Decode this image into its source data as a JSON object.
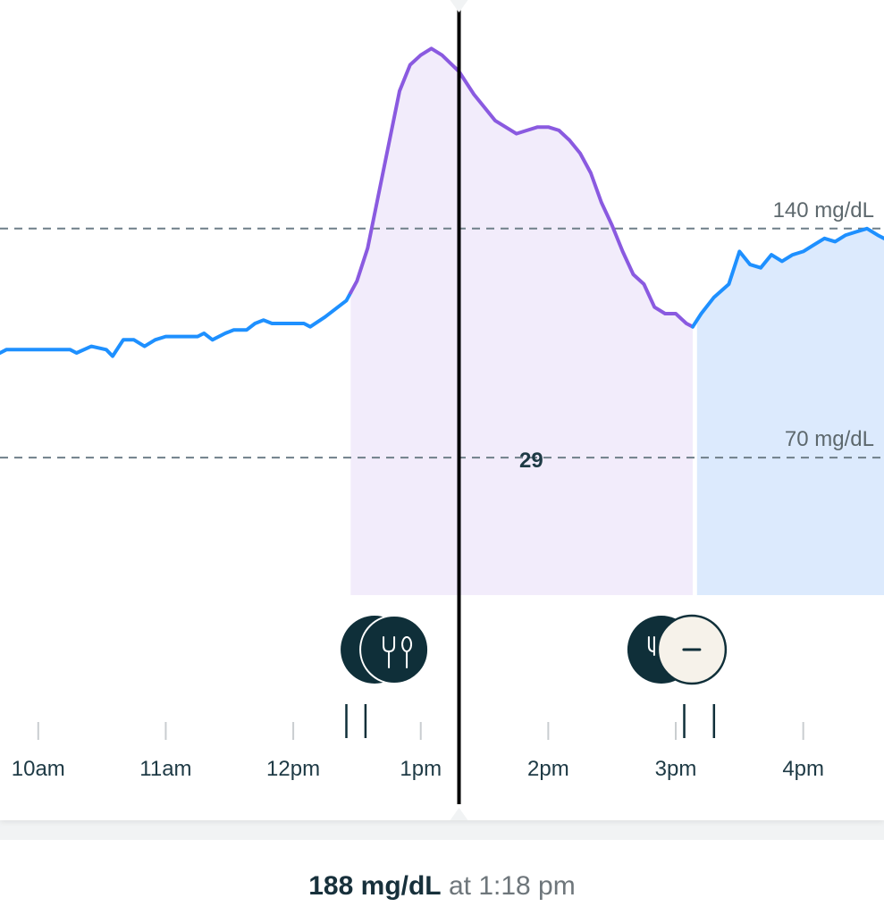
{
  "chart_data": {
    "type": "line",
    "x_unit": "time of day",
    "y_unit": "mg/dL",
    "xlim": [
      "9:42am",
      "4:38pm"
    ],
    "ylim": [
      28,
      197
    ],
    "x_ticks": [
      {
        "time": "10am",
        "label": "10am"
      },
      {
        "time": "11am",
        "label": "11am"
      },
      {
        "time": "12pm",
        "label": "12pm"
      },
      {
        "time": "1pm",
        "label": "1pm"
      },
      {
        "time": "2pm",
        "label": "2pm"
      },
      {
        "time": "3pm",
        "label": "3pm"
      },
      {
        "time": "4pm",
        "label": "4pm"
      }
    ],
    "reference_lines": [
      {
        "value": 140,
        "label": "140 mg/dL"
      },
      {
        "value": 70,
        "label": "70 mg/dL"
      }
    ],
    "colors": {
      "line": "#1e90ff",
      "meal_line": "#8a5ae0",
      "meal_fill": "#f2ecfb",
      "post_fill": "#dceafd",
      "cursor": "#000000",
      "reference": "#6f7f89",
      "marker_dark": "#0f2f39",
      "marker_light": "#f6f2ea"
    },
    "series": [
      {
        "points": [
          [
            "9:42am",
            102
          ],
          [
            "9:45am",
            103
          ],
          [
            "10:00am",
            103
          ],
          [
            "10:15am",
            103
          ],
          [
            "10:18am",
            102
          ],
          [
            "10:25am",
            104
          ],
          [
            "10:32am",
            103
          ],
          [
            "10:35am",
            101
          ],
          [
            "10:40am",
            106
          ],
          [
            "10:45am",
            106
          ],
          [
            "10:50am",
            104
          ],
          [
            "10:55am",
            106
          ],
          [
            "11:00am",
            107
          ],
          [
            "11:05am",
            107
          ],
          [
            "11:15am",
            107
          ],
          [
            "11:18am",
            108
          ],
          [
            "11:22am",
            106
          ],
          [
            "11:28am",
            108
          ],
          [
            "11:32am",
            109
          ],
          [
            "11:38am",
            109
          ],
          [
            "11:42am",
            111
          ],
          [
            "11:46am",
            112
          ],
          [
            "11:50am",
            111
          ],
          [
            "12:00pm",
            111
          ],
          [
            "12:05pm",
            111
          ],
          [
            "12:08pm",
            110
          ],
          [
            "12:15pm",
            113
          ],
          [
            "12:25pm",
            118
          ],
          [
            "12:30pm",
            124
          ],
          [
            "12:35pm",
            134
          ],
          [
            "12:40pm",
            150
          ],
          [
            "12:45pm",
            166
          ],
          [
            "12:50pm",
            182
          ],
          [
            "12:55pm",
            190
          ],
          [
            "1:00pm",
            193
          ],
          [
            "1:05pm",
            195
          ],
          [
            "1:10pm",
            193
          ],
          [
            "1:18pm",
            188
          ],
          [
            "1:25pm",
            181
          ],
          [
            "1:35pm",
            173
          ],
          [
            "1:45pm",
            169
          ],
          [
            "1:50pm",
            170
          ],
          [
            "1:55pm",
            171
          ],
          [
            "2:00pm",
            171
          ],
          [
            "2:05pm",
            170
          ],
          [
            "2:10pm",
            167
          ],
          [
            "2:15pm",
            163
          ],
          [
            "2:20pm",
            157
          ],
          [
            "2:25pm",
            148
          ],
          [
            "2:30pm",
            141
          ],
          [
            "2:35pm",
            133
          ],
          [
            "2:40pm",
            126
          ],
          [
            "2:45pm",
            123
          ],
          [
            "2:50pm",
            116
          ],
          [
            "2:55pm",
            114
          ],
          [
            "3:00pm",
            114
          ],
          [
            "3:05pm",
            111
          ],
          [
            "3:08pm",
            110
          ],
          [
            "3:12pm",
            114
          ],
          [
            "3:18pm",
            119
          ],
          [
            "3:25pm",
            123
          ],
          [
            "3:30pm",
            133
          ],
          [
            "3:35pm",
            129
          ],
          [
            "3:40pm",
            128
          ],
          [
            "3:45pm",
            132
          ],
          [
            "3:50pm",
            130
          ],
          [
            "3:55pm",
            132
          ],
          [
            "4:00pm",
            133
          ],
          [
            "4:05pm",
            135
          ],
          [
            "4:10pm",
            137
          ],
          [
            "4:15pm",
            136
          ],
          [
            "4:20pm",
            138
          ],
          [
            "4:25pm",
            139
          ],
          [
            "4:30pm",
            140
          ],
          [
            "4:35pm",
            138
          ],
          [
            "4:38pm",
            137
          ]
        ]
      }
    ],
    "meal_window": {
      "start": "12:27pm",
      "end": "3:08pm"
    },
    "post_window": {
      "start": "3:10pm",
      "end": "4:38pm"
    },
    "cursor_time": "1:18pm",
    "annotation": {
      "time": "1:52pm",
      "value": 67,
      "label": "29"
    },
    "event_markers": [
      {
        "time": "12:45pm",
        "icons": [
          "dark-circle",
          "fork-spoon"
        ],
        "ticks": [
          "12:25pm",
          "12:34pm"
        ]
      },
      {
        "time": "3:05pm",
        "icons": [
          "fork-knife",
          "minus"
        ],
        "ticks": [
          "3:04pm",
          "3:18pm"
        ]
      }
    ]
  },
  "reading": {
    "value": "188 mg/dL",
    "time": "at 1:18 pm"
  }
}
